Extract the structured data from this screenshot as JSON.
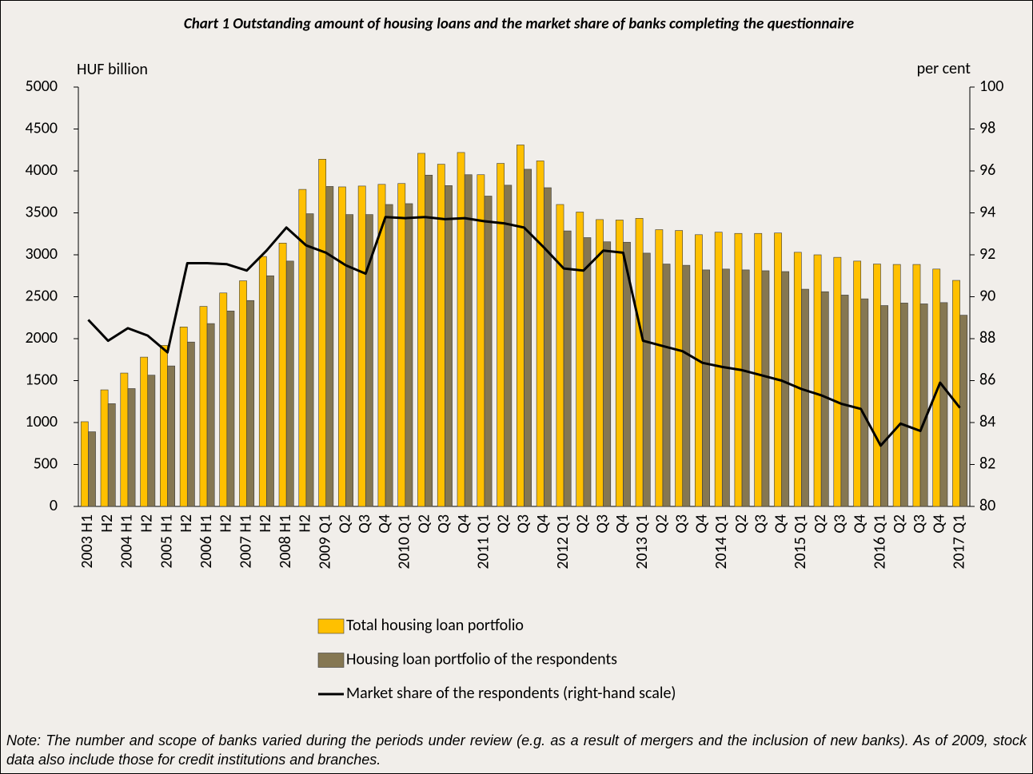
{
  "chart_data": {
    "type": "bar",
    "title": "Chart 1 Outstanding amount of housing loans and the market share of banks completing the questionnaire",
    "y_label": "HUF billion",
    "y2_label": "per cent",
    "categories": [
      "2003 H1",
      "H2",
      "2004 H1",
      "H2",
      "2005 H1",
      "H2",
      "2006 H1",
      "H2",
      "2007 H1",
      "H2",
      "2008 H1",
      "H2",
      "2009 Q1",
      "Q2",
      "Q3",
      "Q4",
      "2010 Q1",
      "Q2",
      "Q3",
      "Q4",
      "2011 Q1",
      "Q2",
      "Q3",
      "Q4",
      "2012 Q1",
      "Q2",
      "Q3",
      "Q4",
      "2013 Q1",
      "Q2",
      "Q3",
      "Q4",
      "2014 Q1",
      "Q2",
      "Q3",
      "Q4",
      "2015 Q1",
      "Q2",
      "Q3",
      "Q4",
      "2016 Q1",
      "Q2",
      "Q3",
      "Q4",
      "2017 Q1"
    ],
    "series": [
      {
        "name": "Total housing loan portfolio",
        "type": "bar",
        "color": "#ffc000",
        "values": [
          1010,
          1390,
          1590,
          1780,
          1920,
          2140,
          2385,
          2545,
          2690,
          2980,
          3140,
          3780,
          4140,
          3810,
          3820,
          3840,
          3850,
          4210,
          4080,
          4220,
          3955,
          4090,
          4310,
          4120,
          3600,
          3510,
          3420,
          3415,
          3435,
          3300,
          3290,
          3240,
          3270,
          3255,
          3255,
          3260,
          3030,
          3000,
          2970,
          2925,
          2890,
          2885,
          2885,
          2830,
          2695
        ]
      },
      {
        "name": "Housing loan portfolio of the respondents",
        "type": "bar",
        "color": "#857752",
        "values": [
          890,
          1225,
          1405,
          1565,
          1675,
          1960,
          2180,
          2330,
          2455,
          2750,
          2925,
          3490,
          3815,
          3480,
          3480,
          3600,
          3610,
          3950,
          3825,
          3955,
          3700,
          3830,
          4020,
          3800,
          3285,
          3205,
          3155,
          3150,
          3020,
          2890,
          2875,
          2820,
          2830,
          2820,
          2810,
          2800,
          2590,
          2560,
          2520,
          2475,
          2395,
          2425,
          2415,
          2430,
          2280
        ]
      },
      {
        "name": "Market share of the respondents (right-hand scale)",
        "type": "line",
        "axis": "y2",
        "color": "#000000",
        "values": [
          88.9,
          87.9,
          88.5,
          88.15,
          87.35,
          91.6,
          91.6,
          91.55,
          91.25,
          92.2,
          93.3,
          92.45,
          92.1,
          91.5,
          91.1,
          93.8,
          93.75,
          93.8,
          93.7,
          93.75,
          93.6,
          93.5,
          93.3,
          92.35,
          91.35,
          91.25,
          92.2,
          92.1,
          87.9,
          87.65,
          87.4,
          86.85,
          86.65,
          86.5,
          86.25,
          86.0,
          85.6,
          85.3,
          84.9,
          84.65,
          82.9,
          83.95,
          83.6,
          85.9,
          84.7
        ]
      }
    ],
    "ylim": [
      0,
      5000
    ],
    "yticks": [
      0,
      500,
      1000,
      1500,
      2000,
      2500,
      3000,
      3500,
      4000,
      4500,
      5000
    ],
    "y2lim": [
      80,
      100
    ],
    "y2ticks": [
      80,
      82,
      84,
      86,
      88,
      90,
      92,
      94,
      96,
      98,
      100
    ],
    "note": "Note: The number and scope of banks varied during the periods under review (e.g. as a result of mergers and the inclusion of new banks). As of 2009, stock data also include those for credit institutions and branches."
  }
}
